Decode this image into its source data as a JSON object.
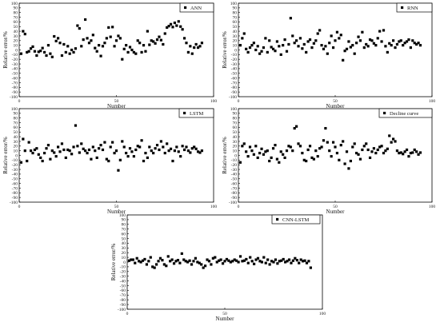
{
  "chart_data": [
    {
      "type": "scatter",
      "legend": "ANN",
      "xlabel": "Number",
      "ylabel": "Relative error/%",
      "xlim": [
        0,
        100
      ],
      "ylim": [
        -100,
        100
      ],
      "xticks": [
        0,
        50,
        100
      ],
      "yticks": [
        -100,
        -90,
        -80,
        -70,
        -60,
        -50,
        -40,
        -30,
        -20,
        -10,
        0,
        10,
        20,
        30,
        40,
        50,
        60,
        70,
        80,
        90,
        100
      ],
      "legend_position": "top-right",
      "grid": false,
      "y": [
        -8,
        40,
        34,
        -5,
        -3,
        3,
        7,
        -3,
        -12,
        -4,
        -2,
        4,
        -5,
        -12,
        10,
        -8,
        -15,
        29,
        19,
        25,
        15,
        -12,
        12,
        -5,
        8,
        -8,
        0,
        -5,
        3,
        52,
        46,
        8,
        22,
        65,
        25,
        15,
        20,
        32,
        4,
        -3,
        10,
        -13,
        8,
        15,
        25,
        48,
        28,
        49,
        8,
        20,
        30,
        25,
        -20,
        2,
        10,
        -5,
        6,
        0,
        -5,
        -8,
        20,
        15,
        -5,
        10,
        -3,
        40,
        11,
        20,
        18,
        14,
        22,
        28,
        21,
        12,
        35,
        48,
        51,
        55,
        49,
        58,
        52,
        61,
        50,
        44,
        25,
        15,
        -5,
        8,
        -8,
        5,
        12,
        5,
        8,
        15
      ]
    },
    {
      "type": "scatter",
      "legend": "RNN",
      "xlabel": "Number",
      "ylabel": "Relative error/%",
      "xlim": [
        0,
        100
      ],
      "ylim": [
        -100,
        100
      ],
      "xticks": [
        0,
        50,
        100
      ],
      "yticks": [
        -100,
        -90,
        -80,
        -70,
        -60,
        -50,
        -40,
        -30,
        -20,
        -10,
        0,
        10,
        20,
        30,
        40,
        50,
        60,
        70,
        80,
        90,
        100
      ],
      "legend_position": "top-right",
      "grid": false,
      "y": [
        10,
        25,
        35,
        2,
        -5,
        5,
        10,
        15,
        0,
        8,
        -8,
        -3,
        5,
        25,
        -5,
        20,
        6,
        2,
        -2,
        18,
        8,
        -10,
        10,
        22,
        -3,
        12,
        68,
        30,
        15,
        20,
        8,
        25,
        3,
        12,
        -5,
        18,
        22,
        5,
        14,
        20,
        35,
        42,
        10,
        2,
        8,
        -8,
        15,
        30,
        5,
        20,
        38,
        25,
        32,
        -22,
        -2,
        2,
        18,
        6,
        10,
        -8,
        15,
        28,
        20,
        38,
        5,
        12,
        8,
        22,
        20,
        14,
        10,
        25,
        40,
        18,
        42,
        8,
        -5,
        14,
        10,
        20,
        5,
        12,
        18,
        20,
        10,
        15,
        18,
        22,
        5,
        20,
        15,
        12,
        15,
        10
      ]
    },
    {
      "type": "scatter",
      "legend": "LSTM",
      "xlabel": "Number",
      "ylabel": "Relative error/%",
      "xlim": [
        0,
        100
      ],
      "ylim": [
        -100,
        100
      ],
      "xticks": [
        0,
        50,
        100
      ],
      "yticks": [
        -100,
        -90,
        -80,
        -70,
        -60,
        -50,
        -40,
        -30,
        -20,
        -10,
        0,
        10,
        20,
        30,
        40,
        50,
        60,
        70,
        80,
        90,
        100
      ],
      "legend_position": "top-right",
      "grid": false,
      "y": [
        -15,
        35,
        10,
        -12,
        28,
        10,
        5,
        12,
        15,
        2,
        -5,
        -12,
        5,
        15,
        22,
        -8,
        10,
        6,
        -2,
        18,
        8,
        25,
        12,
        -5,
        12,
        10,
        3,
        18,
        64,
        20,
        6,
        25,
        14,
        10,
        5,
        12,
        -8,
        18,
        10,
        -5,
        15,
        22,
        12,
        28,
        -8,
        -12,
        18,
        28,
        5,
        10,
        -32,
        -10,
        30,
        18,
        5,
        -2,
        15,
        8,
        -2,
        12,
        20,
        18,
        32,
        -12,
        5,
        -5,
        18,
        10,
        5,
        15,
        22,
        12,
        30,
        18,
        5,
        25,
        10,
        14,
        -12,
        10,
        18,
        8,
        -2,
        20,
        12,
        18,
        10,
        6,
        15,
        18,
        14,
        8,
        6,
        10
      ]
    },
    {
      "type": "scatter",
      "legend": "Decline curve",
      "xlabel": "Number",
      "ylabel": "Relative error/%",
      "xlim": [
        0,
        100
      ],
      "ylim": [
        -100,
        100
      ],
      "xticks": [
        0,
        50,
        100
      ],
      "yticks": [
        -100,
        -90,
        -80,
        -70,
        -60,
        -50,
        -40,
        -30,
        -20,
        -10,
        0,
        10,
        20,
        30,
        40,
        50,
        60,
        70,
        80,
        90,
        100
      ],
      "legend_position": "top-right",
      "grid": false,
      "y": [
        -15,
        20,
        25,
        8,
        -2,
        18,
        10,
        2,
        20,
        -5,
        5,
        14,
        2,
        8,
        10,
        -12,
        -5,
        15,
        22,
        -8,
        -15,
        8,
        2,
        -5,
        10,
        20,
        18,
        10,
        58,
        62,
        25,
        20,
        5,
        -10,
        -12,
        12,
        20,
        -5,
        -8,
        10,
        -2,
        15,
        18,
        32,
        58,
        28,
        10,
        -2,
        28,
        18,
        5,
        -10,
        22,
        30,
        -18,
        8,
        -28,
        -12,
        18,
        25,
        5,
        2,
        -8,
        12,
        20,
        25,
        12,
        -5,
        8,
        15,
        5,
        12,
        18,
        20,
        5,
        10,
        14,
        42,
        28,
        35,
        30,
        10,
        5,
        6,
        3,
        8,
        12,
        -2,
        5,
        6,
        12,
        8,
        2,
        6
      ]
    },
    {
      "type": "scatter",
      "legend": "CNN-LSTM",
      "xlabel": "Number",
      "ylabel": "Relative error/%",
      "xlim": [
        0,
        100
      ],
      "ylim": [
        -100,
        100
      ],
      "xticks": [
        0,
        50,
        100
      ],
      "yticks": [
        -100,
        -90,
        -80,
        -70,
        -60,
        -50,
        -40,
        -30,
        -20,
        -10,
        0,
        10,
        20,
        30,
        40,
        50,
        60,
        70,
        80,
        90,
        100
      ],
      "legend_position": "top-right",
      "grid": false,
      "y": [
        3,
        5,
        5,
        -2,
        8,
        2,
        0,
        3,
        6,
        -5,
        2,
        10,
        -10,
        -12,
        -5,
        2,
        8,
        4,
        -5,
        -8,
        12,
        2,
        5,
        -3,
        2,
        4,
        -2,
        18,
        5,
        2,
        0,
        3,
        -5,
        2,
        8,
        0,
        -2,
        -5,
        -12,
        -8,
        5,
        2,
        -5,
        8,
        10,
        0,
        3,
        5,
        -3,
        2,
        6,
        3,
        0,
        2,
        5,
        3,
        0,
        12,
        2,
        3,
        6,
        -2,
        10,
        2,
        -4,
        5,
        8,
        2,
        0,
        10,
        -2,
        5,
        -5,
        2,
        0,
        5,
        -3,
        2,
        3,
        6,
        0,
        2,
        5,
        -2,
        3,
        8,
        4,
        -2,
        5,
        2,
        3,
        -2,
        2,
        -12
      ]
    }
  ]
}
